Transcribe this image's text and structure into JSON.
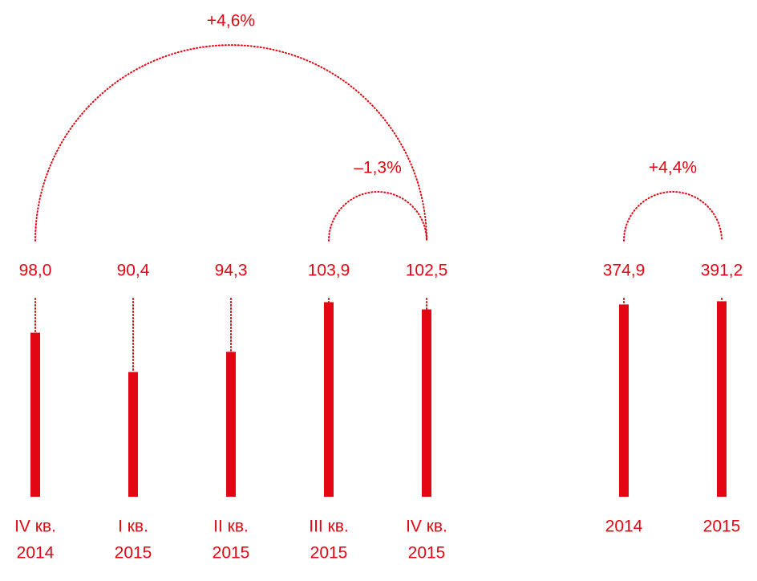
{
  "chart_data": [
    {
      "type": "bar",
      "color": "#e30613",
      "categories": [
        [
          "IV кв.",
          "2014"
        ],
        [
          "I кв.",
          "2015"
        ],
        [
          "II кв.",
          "2015"
        ],
        [
          "III кв.",
          "2015"
        ],
        [
          "IV кв.",
          "2015"
        ]
      ],
      "values": [
        98.0,
        90.4,
        94.3,
        103.9,
        102.5
      ],
      "value_labels": [
        "98,0",
        "90,4",
        "94,3",
        "103,9",
        "102,5"
      ],
      "ylim": [
        66.3,
        104.6
      ],
      "annotations": [
        {
          "text": "+4,6%",
          "from": 0,
          "to": 4
        },
        {
          "text": "–1,3%",
          "from": 3,
          "to": 4
        }
      ]
    },
    {
      "type": "bar",
      "color": "#e30613",
      "categories": [
        [
          "2014"
        ],
        [
          "2015"
        ]
      ],
      "values": [
        374.9,
        391.2
      ],
      "value_labels": [
        "374,9",
        "391,2"
      ],
      "ylim": [
        -600,
        405
      ],
      "annotations": [
        {
          "text": "+4,4%",
          "from": 0,
          "to": 1
        }
      ]
    }
  ]
}
